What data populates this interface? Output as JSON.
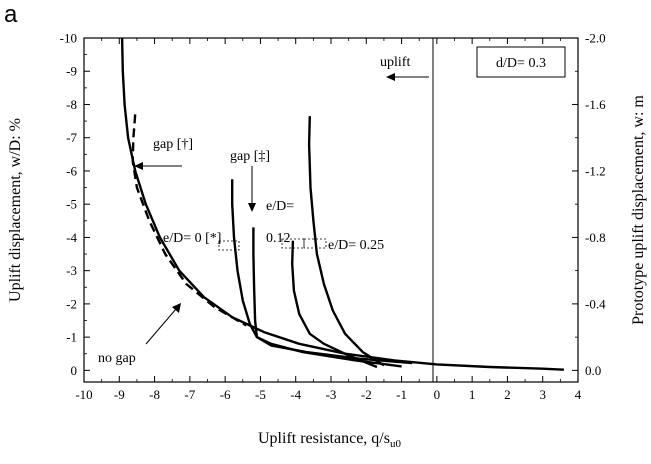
{
  "chart_data": {
    "type": "line",
    "panel_label": "a",
    "xlabel": "Uplift resistance, q/s",
    "xlabel_sub": "u0",
    "ylabel": "Uplift displacement,  w/D:  %",
    "ylabel2": "Prototype uplift displacement, w:  m",
    "xlim": [
      -10,
      4
    ],
    "ylim": [
      -10,
      0.35
    ],
    "y2lim": [
      -2.0,
      0.0
    ],
    "x_ticks": [
      -10,
      -9,
      -8,
      -7,
      -6,
      -5,
      -4,
      -3,
      -2,
      -1,
      0,
      1,
      2,
      3,
      4
    ],
    "y_ticks": [
      -10,
      -9,
      -8,
      -7,
      -6,
      -5,
      -4,
      -3,
      -2,
      -1,
      0
    ],
    "y2_ticks": [
      {
        "y": -10,
        "label": "-2.0"
      },
      {
        "y": -8,
        "label": "-1.6"
      },
      {
        "y": -6,
        "label": "-1.2"
      },
      {
        "y": -4,
        "label": "-0.8"
      },
      {
        "y": -2,
        "label": "-0.4"
      },
      {
        "y": 0,
        "label": "0.0"
      }
    ],
    "grid": false,
    "legend_box": {
      "text": "d/D= 0.3"
    },
    "annotations": {
      "uplift": "uplift",
      "gap1": "gap [†]",
      "gap2": "gap [‡]",
      "e0": "e/D= 0 [*]",
      "e012a": "e/D=",
      "e012b": "0.12",
      "e025": "e/D= 0.25",
      "nogap": "no gap"
    },
    "series": [
      {
        "style": "solid",
        "values": [
          [
            -8.92,
            -10
          ],
          [
            -8.9,
            -9
          ],
          [
            -8.85,
            -8
          ],
          [
            -8.75,
            -7
          ],
          [
            -8.55,
            -6
          ],
          [
            -8.25,
            -5
          ],
          [
            -7.85,
            -4
          ],
          [
            -7.3,
            -3
          ],
          [
            -6.6,
            -2.2
          ],
          [
            -5.8,
            -1.6
          ],
          [
            -4.9,
            -1.15
          ],
          [
            -3.9,
            -0.8
          ],
          [
            -2.6,
            -0.5
          ],
          [
            -1.2,
            -0.3
          ],
          [
            0,
            -0.18
          ],
          [
            1.5,
            -0.1
          ],
          [
            3.0,
            -0.05
          ],
          [
            3.6,
            -0.02
          ]
        ]
      },
      {
        "style": "dashed",
        "values": [
          [
            -8.55,
            -7.7
          ],
          [
            -8.6,
            -7.0
          ],
          [
            -8.62,
            -6.3
          ],
          [
            -8.5,
            -5.5
          ],
          [
            -8.15,
            -4.5
          ],
          [
            -7.7,
            -3.5
          ],
          [
            -7.1,
            -2.6
          ],
          [
            -6.3,
            -1.9
          ],
          [
            -5.4,
            -1.35
          ]
        ]
      },
      {
        "style": "solid",
        "values": [
          [
            -5.8,
            -5.75
          ],
          [
            -5.8,
            -5.0
          ],
          [
            -5.75,
            -4.0
          ],
          [
            -5.65,
            -3.0
          ],
          [
            -5.5,
            -2.1
          ],
          [
            -5.3,
            -1.4
          ],
          [
            -5.1,
            -1.0
          ],
          [
            -4.7,
            -0.75
          ],
          [
            -3.7,
            -0.55
          ],
          [
            -2.2,
            -0.35
          ],
          [
            -0.7,
            -0.22
          ]
        ]
      },
      {
        "style": "solid",
        "values": [
          [
            -5.2,
            -4.3
          ],
          [
            -5.2,
            -3.5
          ],
          [
            -5.18,
            -2.5
          ],
          [
            -5.15,
            -1.5
          ],
          [
            -5.1,
            -1.0
          ],
          [
            -4.7,
            -0.8
          ],
          [
            -3.8,
            -0.55
          ],
          [
            -2.3,
            -0.3
          ],
          [
            -1.0,
            -0.12
          ]
        ]
      },
      {
        "style": "solid",
        "values": [
          [
            -4.08,
            -3.9
          ],
          [
            -4.1,
            -3.2
          ],
          [
            -4.05,
            -2.4
          ],
          [
            -3.9,
            -1.7
          ],
          [
            -3.6,
            -1.1
          ],
          [
            -3.2,
            -0.8
          ],
          [
            -2.5,
            -0.45
          ],
          [
            -1.7,
            -0.1
          ]
        ]
      },
      {
        "style": "solid",
        "values": [
          [
            -3.6,
            -7.65
          ],
          [
            -3.62,
            -6.8
          ],
          [
            -3.58,
            -5.5
          ],
          [
            -3.5,
            -4.5
          ],
          [
            -3.4,
            -3.5
          ],
          [
            -3.2,
            -2.6
          ],
          [
            -2.95,
            -1.8
          ],
          [
            -2.6,
            -1.1
          ],
          [
            -2.1,
            -0.55
          ],
          [
            -1.5,
            -0.15
          ]
        ]
      }
    ]
  }
}
